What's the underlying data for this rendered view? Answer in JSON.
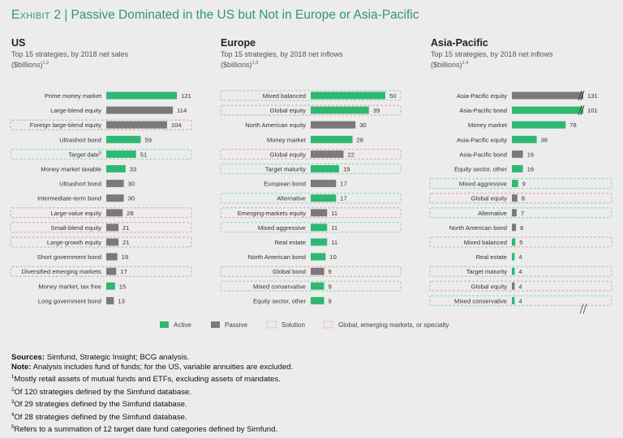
{
  "header": {
    "exhibit": "Exhibit 2",
    "sep": "|",
    "title": "Passive Dominated in the US but Not in Europe or Asia-Pacific"
  },
  "panels": [
    {
      "name": "US",
      "sub_line1": "Top 15 strategies, by 2018 net sales",
      "sub_line2": "($billions)",
      "sup": "1,2"
    },
    {
      "name": "Europe",
      "sub_line1": "Top 15 strategies, by 2018 net inflows",
      "sub_line2": "($billions)",
      "sup": "1,3"
    },
    {
      "name": "Asia-Pacific",
      "sub_line1": "Top 15 strategies, by 2018 net inflows",
      "sub_line2": "($billions)",
      "sup": "1,4"
    }
  ],
  "legend": {
    "active": "Active",
    "passive": "Passive",
    "solution": "Solution",
    "specialty": "Global, emerging markets, or specialty"
  },
  "colors": {
    "active": "#2fb872",
    "passive": "#7a7a7a",
    "solution_border": "#8ed6b2",
    "specialty_border": "#e3a0aa",
    "title": "#2e9a63"
  },
  "chart_data": [
    {
      "type": "bar",
      "title": "US",
      "units": "$billions",
      "categories": [
        "Prime money market",
        "Large-blend equity",
        "Foreign large-blend equity",
        "Ultrashort bond",
        "Target date",
        "Money market taxable",
        "Ultrashort bond",
        "Intermediate-term bond",
        "Large-value equity",
        "Small-blend equity",
        "Large-growth equity",
        "Short government bond",
        "Diversified emerging markets",
        "Money market, tax free",
        "Long government bond"
      ],
      "category_sups": [
        "",
        "",
        "",
        "",
        "5",
        "",
        "",
        "",
        "",
        "",
        "",
        "",
        "",
        "",
        ""
      ],
      "values": [
        121,
        114,
        104,
        59,
        51,
        33,
        30,
        30,
        28,
        21,
        21,
        19,
        17,
        15,
        13
      ],
      "kind": [
        "active",
        "passive",
        "passive",
        "active",
        "active",
        "active",
        "passive",
        "passive",
        "passive",
        "passive",
        "passive",
        "passive",
        "passive",
        "active",
        "passive"
      ],
      "highlight": [
        "",
        "",
        "specialty",
        "",
        "solution",
        "",
        "",
        "",
        "specialty",
        "specialty",
        "specialty",
        "",
        "specialty",
        "",
        ""
      ]
    },
    {
      "type": "bar",
      "title": "Europe",
      "units": "$billions",
      "categories": [
        "Mixed balanced",
        "Global equity",
        "North American equity",
        "Money market",
        "Global equity",
        "Target maturity",
        "European bond",
        "Alternative",
        "Emerging-markets equity",
        "Mixed aggressive",
        "Real estate",
        "North American bond",
        "Global bond",
        "Mixed conservative",
        "Equity sector, other"
      ],
      "category_sups": [
        "",
        "",
        "",
        "",
        "",
        "",
        "",
        "",
        "",
        "",
        "",
        "",
        "",
        "",
        ""
      ],
      "values": [
        50,
        39,
        30,
        28,
        22,
        19,
        17,
        17,
        11,
        11,
        11,
        10,
        9,
        9,
        9
      ],
      "kind": [
        "active",
        "active",
        "passive",
        "active",
        "passive",
        "active",
        "passive",
        "active",
        "passive",
        "active",
        "active",
        "active",
        "passive",
        "active",
        "active"
      ],
      "highlight": [
        "solution",
        "specialty",
        "",
        "",
        "specialty",
        "solution",
        "",
        "solution",
        "specialty",
        "solution",
        "",
        "",
        "specialty",
        "solution",
        ""
      ]
    },
    {
      "type": "bar",
      "title": "Asia-Pacific",
      "units": "$billions",
      "axis_break": true,
      "categories": [
        "Asia-Pacific equity",
        "Asia-Pacific bond",
        "Money market",
        "Asia-Pacific equity",
        "Asia-Pacific bond",
        "Equity sector, other",
        "Mixed aggressive",
        "Global equity",
        "Alternative",
        "North American bond",
        "Mixed balanced",
        "Real estate",
        "Target maturity",
        "Global equity",
        "Mixed conservative"
      ],
      "category_sups": [
        "",
        "",
        "",
        "",
        "",
        "",
        "",
        "",
        "",
        "",
        "",
        "",
        "",
        "",
        ""
      ],
      "values": [
        131,
        101,
        78,
        36,
        16,
        16,
        9,
        8,
        7,
        6,
        5,
        4,
        4,
        4,
        4
      ],
      "kind": [
        "passive",
        "active",
        "active",
        "active",
        "passive",
        "active",
        "active",
        "passive",
        "passive",
        "passive",
        "active",
        "active",
        "active",
        "passive",
        "active"
      ],
      "highlight": [
        "",
        "",
        "",
        "",
        "",
        "",
        "solution",
        "specialty",
        "solution",
        "",
        "specialty",
        "",
        "solution",
        "specialty",
        "solution"
      ]
    }
  ],
  "sources": {
    "sources_label": "Sources:",
    "sources_text": "Simfund, Strategic Insight; BCG analysis.",
    "note_label": "Note:",
    "note_text": "Analysis includes fund of funds; for the US, variable annuities are excluded.",
    "footnotes": [
      {
        "num": "1",
        "text": "Mostly retail assets of mutual funds and ETFs, excluding assets of mandates."
      },
      {
        "num": "2",
        "text": "Of 120 strategies defined by the Simfund database."
      },
      {
        "num": "3",
        "text": "Of 29 strategies defined by the Simfund database."
      },
      {
        "num": "4",
        "text": "Of 28 strategies defined by the Simfund database."
      },
      {
        "num": "5",
        "text": "Refers to a summation of 12 target date fund categories defined by Simfund."
      }
    ]
  }
}
